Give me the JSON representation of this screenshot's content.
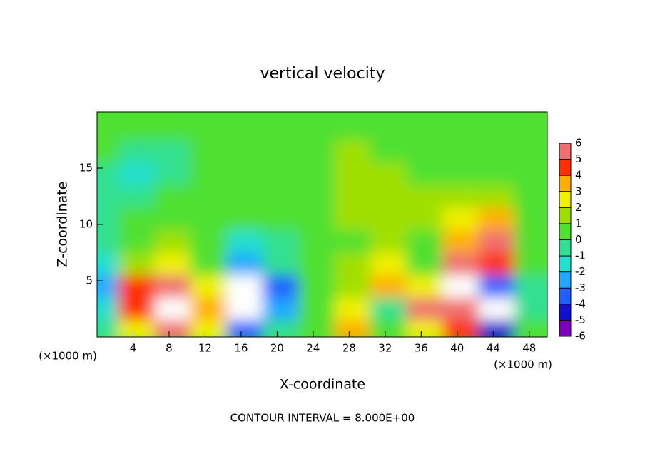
{
  "chart_data": {
    "type": "contour",
    "title": "vertical velocity",
    "x_label": "X-coordinate",
    "y_label": "Z-coordinate",
    "unit_label": "(×1000 m)",
    "annotation": "CONTOUR INTERVAL = 8.000E+00",
    "xlim": [
      0,
      50
    ],
    "ylim": [
      0,
      20
    ],
    "xticks": [
      4,
      8,
      12,
      16,
      20,
      24,
      28,
      32,
      36,
      40,
      44,
      48
    ],
    "yticks": [
      5,
      10,
      15
    ],
    "x": [
      1,
      5,
      9,
      13,
      17,
      21,
      25,
      29,
      33,
      37,
      41,
      45,
      49
    ],
    "y": [
      1,
      3,
      5,
      7,
      9,
      11,
      13,
      15,
      17,
      19
    ],
    "z": [
      [
        -1,
        2,
        5,
        2,
        -4,
        -1,
        0,
        3,
        0,
        2,
        4,
        -5,
        0
      ],
      [
        -2,
        4,
        8,
        3,
        -7,
        -3,
        0,
        2,
        -1,
        5,
        5,
        -7,
        -1
      ],
      [
        -3,
        4,
        5,
        2,
        -7,
        -4,
        0,
        1,
        3,
        2,
        7,
        -4,
        -1
      ],
      [
        -2,
        1,
        2,
        0,
        -3,
        -1,
        0,
        1,
        2,
        0,
        5,
        4,
        0
      ],
      [
        -1,
        0,
        1,
        0,
        -2,
        -1,
        0,
        0,
        1,
        0,
        3,
        5,
        0
      ],
      [
        -1,
        0,
        0,
        0,
        0,
        0,
        0,
        1,
        1,
        1,
        2,
        3,
        0
      ],
      [
        -1,
        -1,
        0,
        0,
        0,
        0,
        0,
        1,
        1,
        1,
        1,
        1,
        0
      ],
      [
        -1,
        -2,
        -1,
        0,
        0,
        0,
        0,
        1,
        1,
        0,
        0,
        0,
        0
      ],
      [
        0,
        -1,
        -1,
        0,
        0,
        0,
        0,
        1,
        0,
        0,
        0,
        0,
        0
      ],
      [
        0,
        0,
        0,
        0,
        0,
        0,
        0,
        0,
        0,
        0,
        0,
        0,
        0
      ]
    ],
    "colorbar_ticks": [
      -6,
      -5,
      -4,
      -3,
      -2,
      -1,
      0,
      1,
      2,
      3,
      4,
      5,
      6
    ],
    "colors": [
      "#8000c0",
      "#1010d0",
      "#2060ff",
      "#20a8ff",
      "#20e0d0",
      "#30e090",
      "#50e030",
      "#a0e000",
      "#f0f000",
      "#ffb000",
      "#ff3000",
      "#f07070"
    ],
    "out_of_range_color": "#ffffff"
  }
}
